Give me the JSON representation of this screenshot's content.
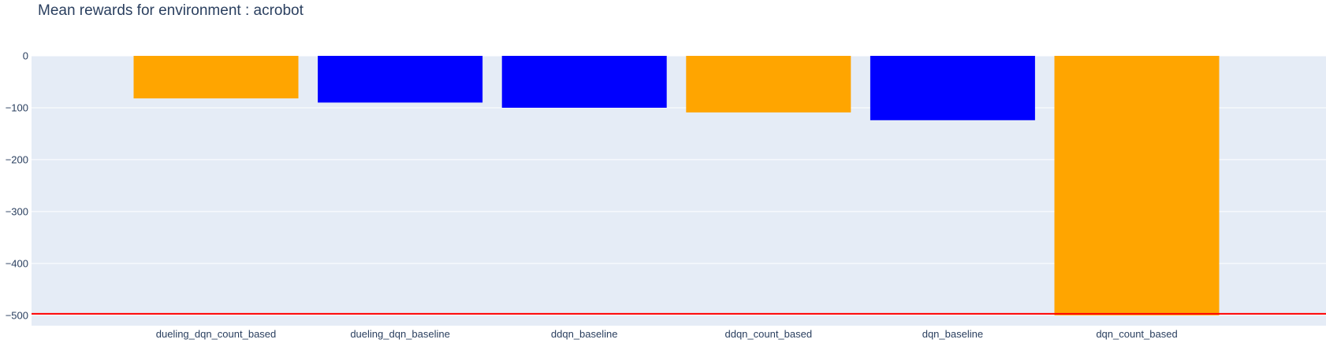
{
  "chart_data": {
    "type": "bar",
    "title": "Mean rewards for environment : acrobot",
    "xlabel": "",
    "ylabel": "",
    "categories": [
      "dueling_dqn_count_based",
      "dueling_dqn_baseline",
      "ddqn_baseline",
      "ddqn_count_based",
      "dqn_baseline",
      "dqn_count_based"
    ],
    "values": [
      -82,
      -90,
      -100,
      -109,
      -124,
      -500
    ],
    "bar_colors": [
      "#FFA500",
      "#0000FF",
      "#0000FF",
      "#FFA500",
      "#0000FF",
      "#FFA500"
    ],
    "ylim": [
      -520,
      0
    ],
    "yticks": [
      0,
      -100,
      -200,
      -300,
      -400,
      -500
    ],
    "ytick_labels": [
      "0",
      "−100",
      "−200",
      "−300",
      "−400",
      "−500"
    ],
    "reference_line": {
      "y": -497,
      "color": "#FF0000"
    },
    "grid": true,
    "background_color": "#E5ECF6",
    "legend": "none"
  }
}
